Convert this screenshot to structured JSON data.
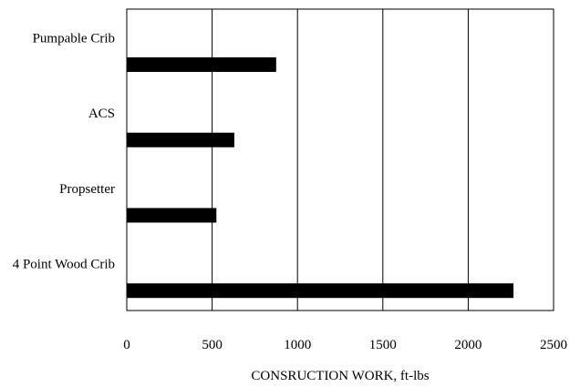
{
  "chart_data": {
    "type": "bar",
    "orientation": "horizontal",
    "title": "",
    "xlabel": "CONSRUCTION WORK, ft-lbs",
    "ylabel": "",
    "categories": [
      "Pumpable Crib",
      "ACS",
      "Propsetter",
      "4 Point Wood Crib"
    ],
    "values": [
      875,
      630,
      525,
      2265
    ],
    "xlim": [
      0,
      2500
    ],
    "xticks": [
      "0",
      "500",
      "1000",
      "1500",
      "2000",
      "2500"
    ],
    "grid": "vertical",
    "legend": "none",
    "bar_color": "#000000"
  }
}
